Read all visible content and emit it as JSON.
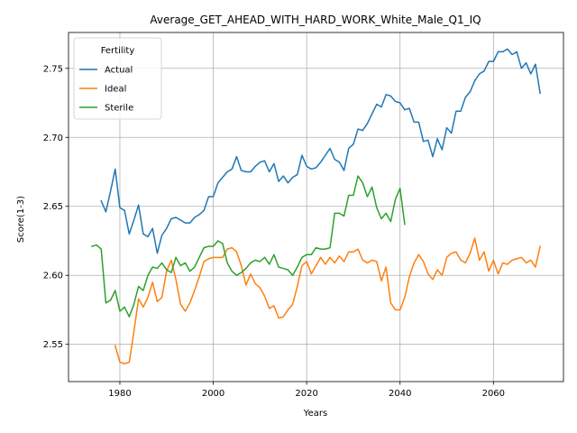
{
  "chart_data": {
    "type": "line",
    "title": "Average_GET_AHEAD_WITH_HARD_WORK_White_Male_Q1_IQ",
    "xlabel": "Years",
    "ylabel": "Score(1-3)",
    "xlim": [
      1969,
      2075
    ],
    "ylim": [
      2.523,
      2.776
    ],
    "xticks": [
      1980,
      2000,
      2020,
      2040,
      2060
    ],
    "yticks": [
      2.55,
      2.6,
      2.65,
      2.7,
      2.75
    ],
    "xtick_labels": [
      "1980",
      "2000",
      "2020",
      "2040",
      "2060"
    ],
    "ytick_labels": [
      "2.55",
      "2.60",
      "2.65",
      "2.70",
      "2.75"
    ],
    "grid": true,
    "legend": {
      "title": "Fertility",
      "position": "top-left"
    },
    "series": [
      {
        "name": "Actual",
        "color": "#1f77b4",
        "x": [
          1976,
          1977,
          1978,
          1979,
          1980,
          1981,
          1982,
          1983,
          1984,
          1985,
          1986,
          1987,
          1988,
          1989,
          1990,
          1991,
          1992,
          1993,
          1994,
          1995,
          1996,
          1997,
          1998,
          1999,
          2000,
          2001,
          2002,
          2003,
          2004,
          2005,
          2006,
          2007,
          2008,
          2009,
          2010,
          2011,
          2012,
          2013,
          2014,
          2015,
          2016,
          2017,
          2018,
          2019,
          2020,
          2021,
          2022,
          2023,
          2024,
          2025,
          2026,
          2027,
          2028,
          2029,
          2030,
          2031,
          2032,
          2033,
          2034,
          2035,
          2036,
          2037,
          2038,
          2039,
          2040,
          2041,
          2042,
          2043,
          2044,
          2045,
          2046,
          2047,
          2048,
          2049,
          2050,
          2051,
          2052,
          2053,
          2054,
          2055,
          2056,
          2057,
          2058,
          2059,
          2060,
          2061,
          2062,
          2063,
          2064,
          2065,
          2066,
          2067,
          2068,
          2069,
          2070
        ],
        "y": [
          2.654,
          2.646,
          2.661,
          2.677,
          2.649,
          2.647,
          2.63,
          2.64,
          2.651,
          2.63,
          2.628,
          2.634,
          2.616,
          2.629,
          2.634,
          2.641,
          2.642,
          2.64,
          2.638,
          2.638,
          2.642,
          2.644,
          2.647,
          2.657,
          2.657,
          2.667,
          2.671,
          2.675,
          2.677,
          2.686,
          2.676,
          2.675,
          2.675,
          2.679,
          2.682,
          2.683,
          2.675,
          2.681,
          2.668,
          2.672,
          2.667,
          2.671,
          2.673,
          2.687,
          2.679,
          2.677,
          2.678,
          2.682,
          2.687,
          2.692,
          2.684,
          2.682,
          2.676,
          2.692,
          2.695,
          2.706,
          2.705,
          2.71,
          2.717,
          2.724,
          2.722,
          2.731,
          2.73,
          2.726,
          2.725,
          2.72,
          2.721,
          2.711,
          2.711,
          2.697,
          2.698,
          2.686,
          2.699,
          2.691,
          2.707,
          2.703,
          2.719,
          2.719,
          2.729,
          2.733,
          2.741,
          2.746,
          2.748,
          2.755,
          2.755,
          2.762,
          2.762,
          2.764,
          2.76,
          2.762,
          2.75,
          2.754,
          2.746,
          2.753,
          2.732
        ]
      },
      {
        "name": "Ideal",
        "color": "#ff7f0e",
        "x": [
          1979,
          1980,
          1981,
          1982,
          1983,
          1984,
          1985,
          1986,
          1987,
          1988,
          1989,
          1990,
          1991,
          1992,
          1993,
          1994,
          1995,
          1996,
          1997,
          1998,
          1999,
          2000,
          2001,
          2002,
          2003,
          2004,
          2005,
          2006,
          2007,
          2008,
          2009,
          2010,
          2011,
          2012,
          2013,
          2014,
          2015,
          2016,
          2017,
          2018,
          2019,
          2020,
          2021,
          2022,
          2023,
          2024,
          2025,
          2026,
          2027,
          2028,
          2029,
          2030,
          2031,
          2032,
          2033,
          2034,
          2035,
          2036,
          2037,
          2038,
          2039,
          2040,
          2041,
          2042,
          2043,
          2044,
          2045,
          2046,
          2047,
          2048,
          2049,
          2050,
          2051,
          2052,
          2053,
          2054,
          2055,
          2056,
          2057,
          2058,
          2059,
          2060,
          2061,
          2062,
          2063,
          2064,
          2065,
          2066,
          2067,
          2068,
          2069,
          2070
        ],
        "y": [
          2.549,
          2.537,
          2.536,
          2.537,
          2.559,
          2.583,
          2.577,
          2.584,
          2.595,
          2.581,
          2.584,
          2.603,
          2.611,
          2.597,
          2.579,
          2.574,
          2.58,
          2.589,
          2.599,
          2.61,
          2.612,
          2.613,
          2.613,
          2.613,
          2.619,
          2.62,
          2.617,
          2.607,
          2.593,
          2.601,
          2.594,
          2.591,
          2.585,
          2.576,
          2.578,
          2.569,
          2.57,
          2.575,
          2.579,
          2.592,
          2.607,
          2.61,
          2.601,
          2.607,
          2.613,
          2.608,
          2.613,
          2.609,
          2.614,
          2.61,
          2.617,
          2.617,
          2.619,
          2.611,
          2.609,
          2.611,
          2.61,
          2.596,
          2.606,
          2.58,
          2.575,
          2.575,
          2.584,
          2.599,
          2.609,
          2.615,
          2.61,
          2.601,
          2.597,
          2.604,
          2.6,
          2.613,
          2.616,
          2.617,
          2.611,
          2.609,
          2.616,
          2.627,
          2.611,
          2.617,
          2.603,
          2.611,
          2.601,
          2.609,
          2.608,
          2.611,
          2.612,
          2.613,
          2.609,
          2.611,
          2.606,
          2.621
        ]
      },
      {
        "name": "Sterile",
        "color": "#2ca02c",
        "x": [
          1974,
          1975,
          1976,
          1977,
          1978,
          1979,
          1980,
          1981,
          1982,
          1983,
          1984,
          1985,
          1986,
          1987,
          1988,
          1989,
          1990,
          1991,
          1992,
          1993,
          1994,
          1995,
          1996,
          1997,
          1998,
          1999,
          2000,
          2001,
          2002,
          2003,
          2004,
          2005,
          2006,
          2007,
          2008,
          2009,
          2010,
          2011,
          2012,
          2013,
          2014,
          2015,
          2016,
          2017,
          2018,
          2019,
          2020,
          2021,
          2022,
          2023,
          2024,
          2025,
          2026,
          2027,
          2028,
          2029,
          2030,
          2031,
          2032,
          2033,
          2034,
          2035,
          2036,
          2037,
          2038,
          2039,
          2040,
          2041
        ],
        "y": [
          2.621,
          2.622,
          2.619,
          2.58,
          2.582,
          2.589,
          2.574,
          2.577,
          2.57,
          2.579,
          2.592,
          2.589,
          2.6,
          2.606,
          2.605,
          2.609,
          2.604,
          2.602,
          2.613,
          2.607,
          2.609,
          2.603,
          2.606,
          2.613,
          2.62,
          2.621,
          2.621,
          2.625,
          2.623,
          2.609,
          2.603,
          2.6,
          2.602,
          2.605,
          2.609,
          2.611,
          2.61,
          2.613,
          2.608,
          2.615,
          2.606,
          2.605,
          2.604,
          2.6,
          2.606,
          2.613,
          2.615,
          2.615,
          2.62,
          2.619,
          2.619,
          2.62,
          2.645,
          2.645,
          2.643,
          2.658,
          2.658,
          2.672,
          2.667,
          2.657,
          2.664,
          2.649,
          2.641,
          2.645,
          2.639,
          2.655,
          2.663,
          2.637
        ]
      }
    ]
  }
}
